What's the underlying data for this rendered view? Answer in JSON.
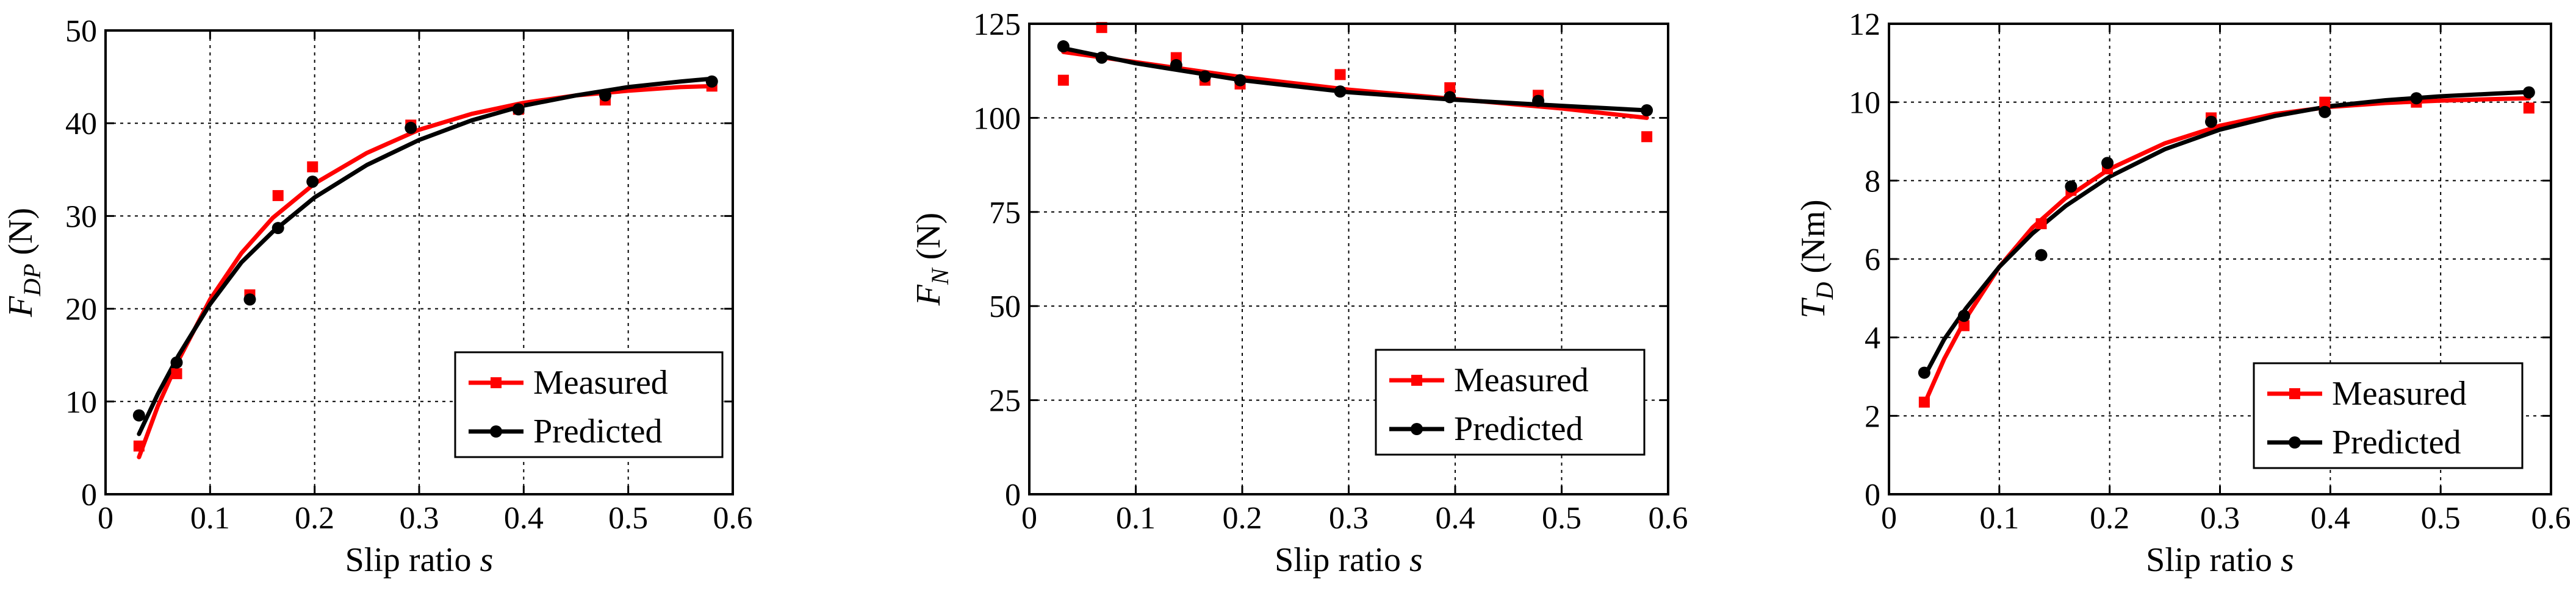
{
  "chart_data": [
    {
      "type": "scatter",
      "xlabel": "Slip ratio",
      "xlabel_var": "s",
      "ylabel_var": "F",
      "ylabel_sub": "DP",
      "ylabel_unit": "(N)",
      "xlim": [
        0,
        0.6
      ],
      "ylim": [
        0,
        50
      ],
      "xticks": [
        "0",
        "0.1",
        "0.2",
        "0.3",
        "0.4",
        "0.5",
        "0.6"
      ],
      "yticks": [
        "0",
        "10",
        "20",
        "30",
        "40",
        "50"
      ],
      "legend_position": "lower-right",
      "series": [
        {
          "name": "Measured",
          "color": "#ff0000",
          "marker": "square",
          "x": [
            0.032,
            0.068,
            0.138,
            0.165,
            0.198,
            0.292,
            0.395,
            0.478,
            0.58
          ],
          "y": [
            5.2,
            13.0,
            21.5,
            32.2,
            35.3,
            39.8,
            41.5,
            42.5,
            44.0
          ],
          "fit_x": [
            0.032,
            0.05,
            0.07,
            0.1,
            0.13,
            0.16,
            0.2,
            0.25,
            0.3,
            0.35,
            0.4,
            0.45,
            0.5,
            0.55,
            0.58
          ],
          "fit_y": [
            4.0,
            9.5,
            14.5,
            21.0,
            26.0,
            29.8,
            33.5,
            36.8,
            39.3,
            41.0,
            42.2,
            43.0,
            43.5,
            43.9,
            44.0
          ]
        },
        {
          "name": "Predicted",
          "color": "#000000",
          "marker": "circle",
          "x": [
            0.032,
            0.068,
            0.138,
            0.165,
            0.198,
            0.292,
            0.395,
            0.478,
            0.58
          ],
          "y": [
            8.5,
            14.2,
            21.0,
            28.7,
            33.7,
            39.5,
            41.5,
            43.0,
            44.5
          ],
          "fit_x": [
            0.032,
            0.05,
            0.07,
            0.1,
            0.13,
            0.16,
            0.2,
            0.25,
            0.3,
            0.35,
            0.4,
            0.45,
            0.5,
            0.55,
            0.58
          ],
          "fit_y": [
            6.5,
            10.8,
            15.0,
            20.5,
            25.0,
            28.3,
            32.0,
            35.5,
            38.2,
            40.3,
            41.9,
            43.0,
            43.9,
            44.5,
            44.8
          ]
        }
      ]
    },
    {
      "type": "scatter",
      "xlabel": "Slip ratio",
      "xlabel_var": "s",
      "ylabel_var": "F",
      "ylabel_sub": "N",
      "ylabel_unit": "(N)",
      "xlim": [
        0,
        0.6
      ],
      "ylim": [
        0,
        125
      ],
      "xticks": [
        "0",
        "0.1",
        "0.2",
        "0.3",
        "0.4",
        "0.5",
        "0.6"
      ],
      "yticks": [
        "0",
        "25",
        "50",
        "75",
        "100",
        "125"
      ],
      "legend_position": "lower-right",
      "series": [
        {
          "name": "Measured",
          "color": "#ff0000",
          "marker": "square",
          "x": [
            0.032,
            0.068,
            0.138,
            0.165,
            0.198,
            0.292,
            0.395,
            0.478,
            0.58
          ],
          "y": [
            110.0,
            124.0,
            116.0,
            110.0,
            109.0,
            111.5,
            108.0,
            106.0,
            95.0
          ],
          "fit_x": [
            0.032,
            0.1,
            0.2,
            0.3,
            0.4,
            0.5,
            0.58
          ],
          "fit_y": [
            117.5,
            114.8,
            110.8,
            107.5,
            105.0,
            102.5,
            100.0
          ]
        },
        {
          "name": "Predicted",
          "color": "#000000",
          "marker": "circle",
          "x": [
            0.032,
            0.068,
            0.138,
            0.165,
            0.198,
            0.292,
            0.395,
            0.478,
            0.58
          ],
          "y": [
            119.0,
            116.0,
            114.0,
            111.0,
            110.0,
            107.0,
            105.5,
            104.5,
            102.0
          ],
          "fit_x": [
            0.032,
            0.1,
            0.2,
            0.3,
            0.4,
            0.5,
            0.58
          ],
          "fit_y": [
            118.5,
            114.5,
            110.0,
            106.8,
            104.8,
            103.2,
            102.0
          ]
        }
      ]
    },
    {
      "type": "scatter",
      "xlabel": "Slip ratio",
      "xlabel_var": "s",
      "ylabel_var": "T",
      "ylabel_sub": "D",
      "ylabel_unit": "(Nm)",
      "xlim": [
        0,
        0.6
      ],
      "ylim": [
        0,
        12
      ],
      "xticks": [
        "0",
        "0.1",
        "0.2",
        "0.3",
        "0.4",
        "0.5",
        "0.6"
      ],
      "yticks": [
        "0",
        "2",
        "4",
        "6",
        "8",
        "10",
        "12"
      ],
      "legend_position": "lower-right",
      "series": [
        {
          "name": "Measured",
          "color": "#ff0000",
          "marker": "square",
          "x": [
            0.032,
            0.068,
            0.138,
            0.165,
            0.198,
            0.292,
            0.395,
            0.478,
            0.58
          ],
          "y": [
            2.35,
            4.3,
            6.9,
            7.75,
            8.3,
            9.6,
            10.0,
            10.0,
            9.85
          ],
          "fit_x": [
            0.032,
            0.05,
            0.07,
            0.1,
            0.13,
            0.16,
            0.2,
            0.25,
            0.3,
            0.35,
            0.4,
            0.45,
            0.5,
            0.55,
            0.58
          ],
          "fit_y": [
            2.3,
            3.45,
            4.5,
            5.8,
            6.8,
            7.55,
            8.3,
            8.95,
            9.4,
            9.7,
            9.88,
            9.98,
            10.04,
            10.08,
            10.1
          ]
        },
        {
          "name": "Predicted",
          "color": "#000000",
          "marker": "circle",
          "x": [
            0.032,
            0.068,
            0.138,
            0.165,
            0.198,
            0.292,
            0.395,
            0.478,
            0.58
          ],
          "y": [
            3.1,
            4.55,
            6.1,
            7.85,
            8.45,
            9.5,
            9.75,
            10.1,
            10.25
          ],
          "fit_x": [
            0.032,
            0.05,
            0.07,
            0.1,
            0.13,
            0.16,
            0.2,
            0.25,
            0.3,
            0.35,
            0.4,
            0.45,
            0.5,
            0.55,
            0.58
          ],
          "fit_y": [
            3.0,
            3.95,
            4.75,
            5.8,
            6.65,
            7.35,
            8.1,
            8.8,
            9.3,
            9.65,
            9.9,
            10.05,
            10.15,
            10.22,
            10.26
          ]
        }
      ]
    }
  ]
}
